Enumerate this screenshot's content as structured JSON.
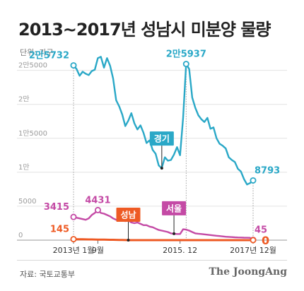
{
  "title": "2013~2017년 성남시 미분양 물량",
  "unit_label": "단위: 가구",
  "footer": {
    "source": "자료: 국토교통부",
    "brand": "The JoongAng"
  },
  "chart_data": {
    "type": "line",
    "title": "2013~2017년 성남시 미분양 물량",
    "ylim": [
      0,
      26000
    ],
    "y_ticks": [
      {
        "value": 0,
        "label": "0"
      },
      {
        "value": 5000,
        "label": "5000"
      },
      {
        "value": 10000,
        "label": "1만"
      },
      {
        "value": 15000,
        "label": "1만5000"
      },
      {
        "value": 20000,
        "label": "2만"
      },
      {
        "value": 25000,
        "label": "2만5000"
      }
    ],
    "x_range": [
      0,
      59
    ],
    "x_ticks": [
      {
        "value": 0,
        "label": "2013년 1월"
      },
      {
        "value": 8,
        "label": "9월"
      },
      {
        "value": 35,
        "label": "2015. 12"
      },
      {
        "value": 59,
        "label": "2017년 12월"
      }
    ],
    "series": [
      {
        "name": "경기",
        "color": "#2aa8c7",
        "values": [
          25732,
          25200,
          24200,
          24800,
          24500,
          24300,
          24900,
          25100,
          26800,
          27000,
          25400,
          26800,
          25700,
          23800,
          20600,
          19700,
          18500,
          16800,
          17600,
          18700,
          17200,
          16300,
          16900,
          15800,
          14300,
          14700,
          13300,
          12700,
          11000,
          10600,
          12200,
          11700,
          11800,
          12600,
          13700,
          12500,
          18000,
          25937,
          25200,
          21000,
          19500,
          18400,
          17800,
          17400,
          18000,
          16400,
          16600,
          15000,
          14200,
          13900,
          13500,
          12200,
          11800,
          11500,
          10500,
          10100,
          9000,
          8200,
          8400,
          8793
        ],
        "labels": [
          {
            "index": 0,
            "text": "2만5732",
            "pos": "above-left"
          },
          {
            "index": 37,
            "text": "2만5937",
            "pos": "above"
          },
          {
            "index": 59,
            "text": "8793",
            "pos": "above-right"
          }
        ],
        "badge": {
          "text": "경기",
          "index": 29
        }
      },
      {
        "name": "서울",
        "color": "#c44aa5",
        "values": [
          3415,
          3300,
          3200,
          3100,
          3000,
          3200,
          3700,
          4000,
          4431,
          4000,
          3900,
          3700,
          3500,
          3200,
          3000,
          3000,
          2900,
          2800,
          2900,
          2600,
          2500,
          2600,
          2400,
          2200,
          2200,
          2000,
          1900,
          1700,
          1500,
          1400,
          1300,
          1200,
          1000,
          950,
          900,
          900,
          1600,
          1550,
          1400,
          1200,
          1000,
          950,
          900,
          850,
          800,
          750,
          700,
          650,
          600,
          550,
          500,
          480,
          450,
          420,
          400,
          380,
          360,
          350,
          340,
          45
        ],
        "labels": [
          {
            "index": 0,
            "text": "3415",
            "pos": "above-left"
          },
          {
            "index": 8,
            "text": "4431",
            "pos": "above"
          },
          {
            "index": 59,
            "text": "45",
            "pos": "above-right"
          }
        ],
        "badge": {
          "text": "서울",
          "index": 33
        }
      },
      {
        "name": "성남",
        "color": "#ee5a24",
        "values": [
          145,
          140,
          130,
          120,
          110,
          100,
          100,
          90,
          80,
          80,
          70,
          60,
          50,
          50,
          40,
          30,
          20,
          10,
          5,
          0,
          0,
          0,
          0,
          0,
          0,
          0,
          0,
          0,
          0,
          0,
          0,
          0,
          0,
          0,
          0,
          0,
          0,
          0,
          0,
          0,
          0,
          0,
          0,
          0,
          0,
          0,
          0,
          0,
          0,
          0,
          0,
          0,
          0,
          0,
          0,
          0,
          0,
          0,
          0,
          0
        ],
        "labels": [
          {
            "index": 0,
            "text": "145",
            "pos": "above-left"
          },
          {
            "index": 59,
            "text": "0",
            "pos": "right"
          }
        ],
        "badge": {
          "text": "성남",
          "index": 18
        }
      }
    ]
  }
}
